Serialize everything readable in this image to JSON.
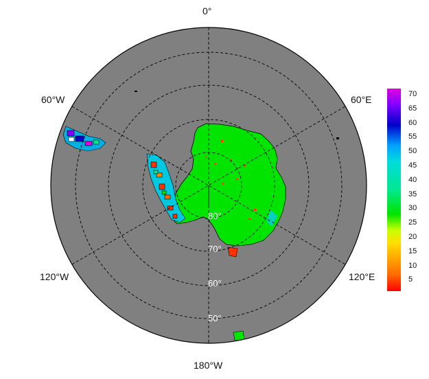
{
  "map": {
    "projection": "south polar stereographic",
    "longitude_labels": {
      "top": "0°",
      "upper_left": "60°W",
      "upper_right": "60°E",
      "lower_left": "120°W",
      "lower_right": "120°E",
      "bottom": "180°W"
    },
    "latitude_labels": [
      "80°",
      "70°",
      "60°",
      "50°"
    ],
    "colors": {
      "ocean": "#808080",
      "ice_mid": "#00e400",
      "outline": "#000000"
    }
  },
  "colorbar": {
    "ticks": [
      "70",
      "65",
      "60",
      "55",
      "50",
      "45",
      "40",
      "35",
      "30",
      "25",
      "20",
      "15",
      "10",
      "5"
    ],
    "range": [
      0,
      72
    ],
    "stops": [
      "#ff0000",
      "#ff6a00",
      "#ffe000",
      "#c8ff00",
      "#00e400",
      "#00e890",
      "#00dcdc",
      "#00a0ff",
      "#0000c8",
      "#8000ff",
      "#e000e0"
    ]
  }
}
